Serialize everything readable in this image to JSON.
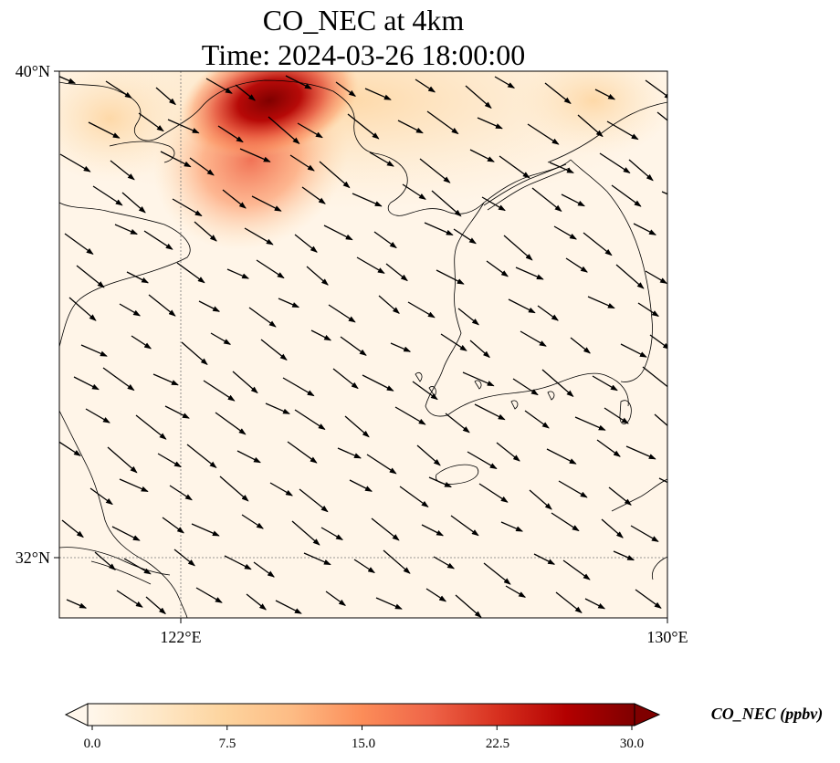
{
  "title_line1": "CO_NEC at 4km",
  "title_line2": "Time: 2024-03-26 18:00:00",
  "lat_ticks": [
    "40°N",
    "32°N"
  ],
  "lon_ticks": [
    "122°E",
    "130°E"
  ],
  "colorbar": {
    "label": "CO_NEC (ppbv)",
    "ticks": [
      "0.0",
      "7.5",
      "15.0",
      "22.5",
      "30.0"
    ],
    "vmin": 0,
    "vmax": 30,
    "colormap": "OrRd",
    "colors": [
      "#fff7ec",
      "#fee8c8",
      "#fdd49e",
      "#fdbb84",
      "#fc8d59",
      "#ef6548",
      "#d7301f",
      "#b30000",
      "#7f0000"
    ],
    "extend": "both"
  },
  "map": {
    "projection": "PlateCarree",
    "lon_range": [
      120,
      130
    ],
    "lat_range": [
      31,
      40
    ],
    "gridlines": {
      "lons": [
        122
      ],
      "lats": [
        32
      ],
      "style": "dotted"
    }
  },
  "field": {
    "description_value_units": "ppbv",
    "hotspots": [
      {
        "lon": 123.3,
        "lat": 39.7,
        "value": 30
      },
      {
        "lon": 123.0,
        "lat": 38.8,
        "value": 20
      },
      {
        "lon": 121.2,
        "lat": 39.4,
        "value": 9
      },
      {
        "lon": 127.5,
        "lat": 39.8,
        "value": 6
      }
    ]
  },
  "wind": {
    "u": 1.0,
    "v": -0.28
  }
}
